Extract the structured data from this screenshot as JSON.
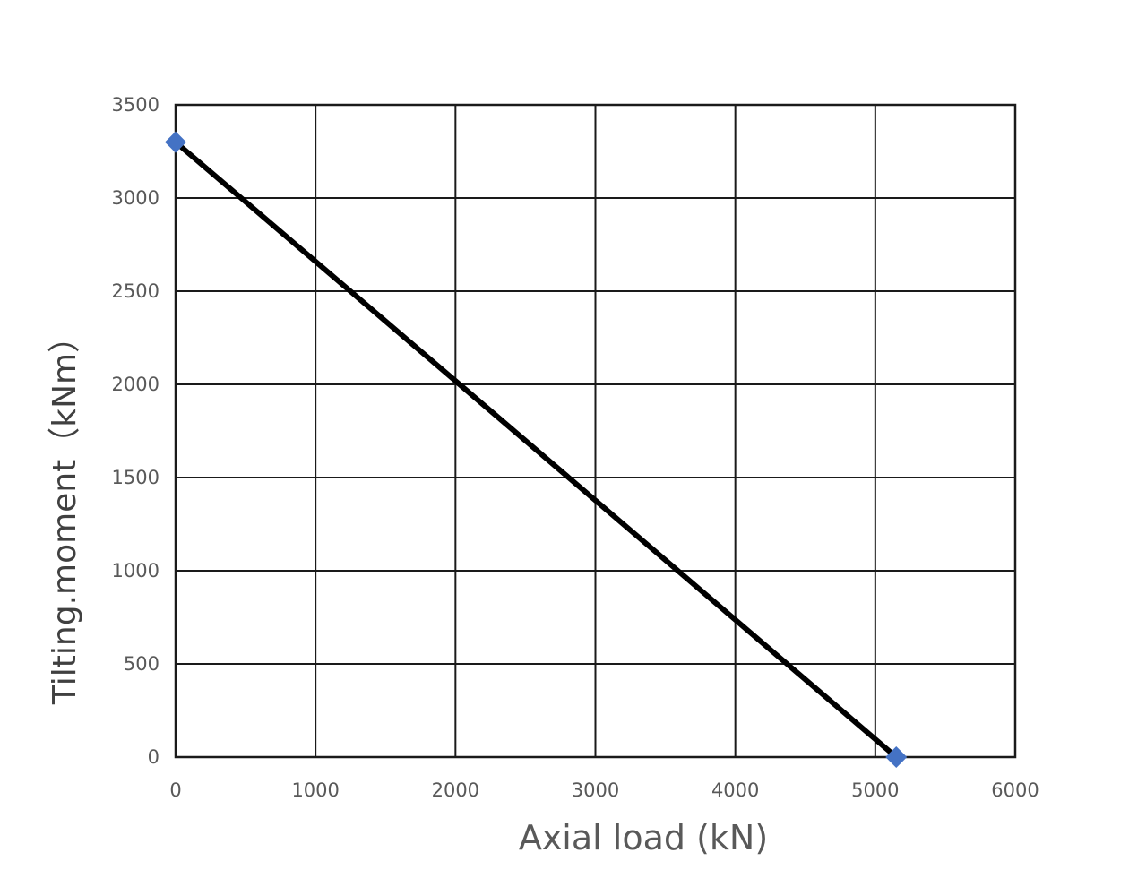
{
  "chart_data": {
    "type": "line",
    "xlabel": "Axial load (kN)",
    "ylabel": "Tilting.moment（kNm）",
    "xlim": [
      0,
      6000
    ],
    "ylim": [
      0,
      3500
    ],
    "x_ticks": [
      0,
      1000,
      2000,
      3000,
      4000,
      5000,
      6000
    ],
    "y_ticks": [
      0,
      500,
      1000,
      1500,
      2000,
      2500,
      3000,
      3500
    ],
    "grid": true,
    "legend": "none",
    "series": [
      {
        "x": [
          0,
          5150
        ],
        "y": [
          3300,
          0
        ],
        "line_color": "#000000",
        "marker": "diamond",
        "marker_color": "#4472C4"
      }
    ]
  }
}
